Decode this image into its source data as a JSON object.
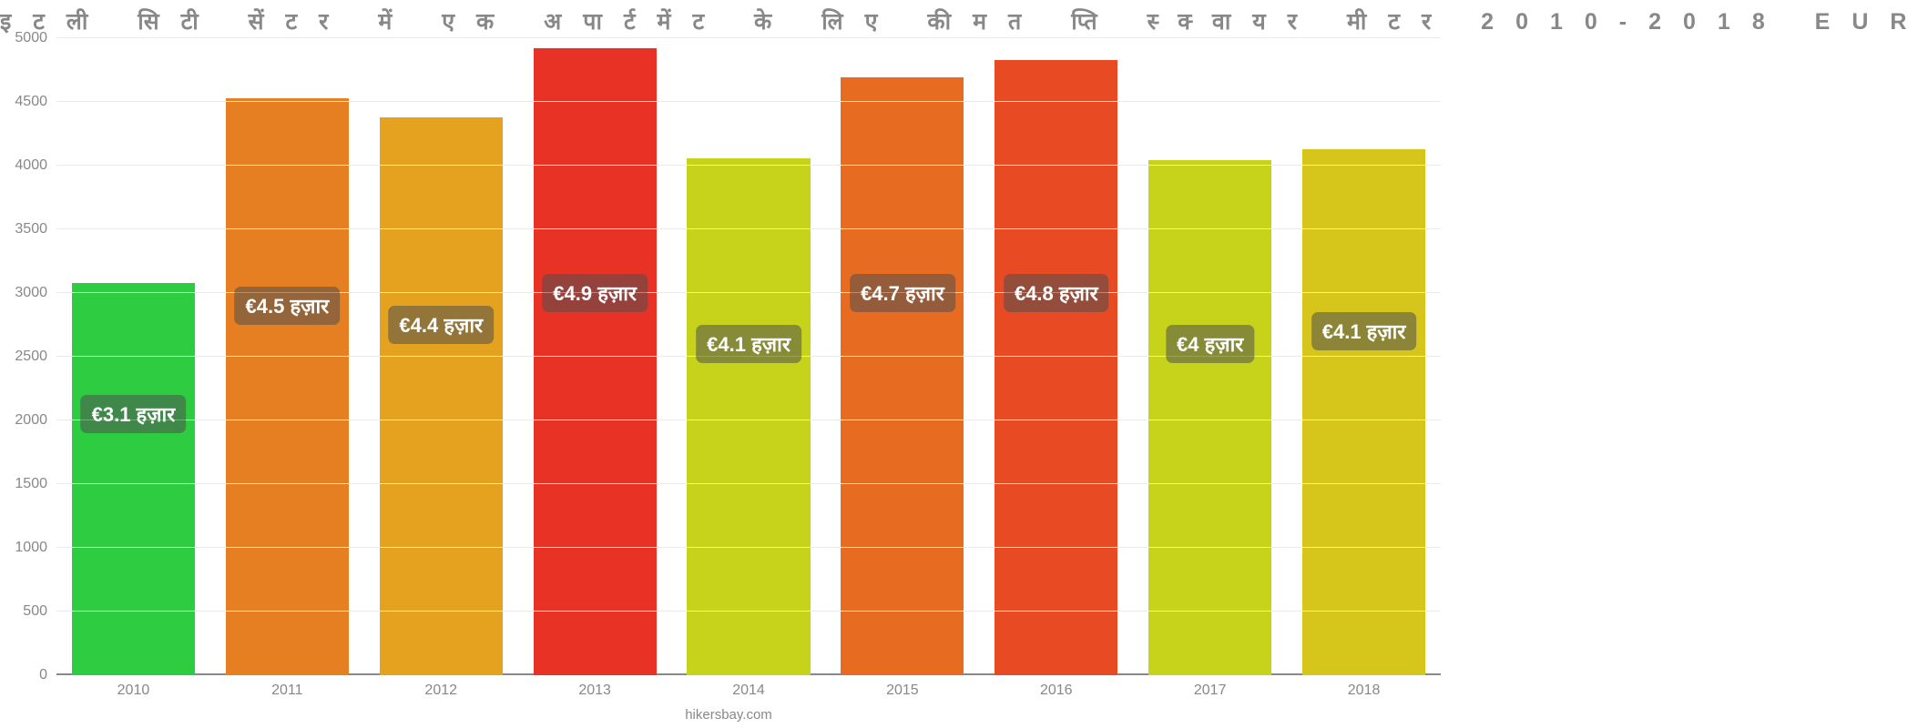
{
  "chart": {
    "type": "bar",
    "title": "इटली सिटी सेंटर में एक अपार्टमेंट के लिए कीमत प्ति स्क्वायर मीटर 2010-2018 EUR",
    "title_fontsize": 25,
    "title_color": "#888888",
    "footer": "hikersbay.com",
    "footer_color": "#888888",
    "background_color": "#ffffff",
    "grid_color": "#eaeaea",
    "axis_color": "#888888",
    "tick_label_color": "#888888",
    "tick_label_fontsize": 16,
    "ylim_min": 0,
    "ylim_max": 5000,
    "ytick_step": 500,
    "yticks": [
      0,
      500,
      1000,
      1500,
      2000,
      2500,
      3000,
      3500,
      4000,
      4500,
      5000
    ],
    "bar_width_pct": 80,
    "value_label_fontsize": 22,
    "value_label_text_color": "#ffffff",
    "value_label_bg_opacity": 0.55,
    "value_label_y_value": 2300,
    "label_offsets": [
      -550,
      300,
      150,
      400,
      0,
      400,
      400,
      0,
      100
    ],
    "categories": [
      "2010",
      "2011",
      "2012",
      "2013",
      "2014",
      "2015",
      "2016",
      "2017",
      "2018"
    ],
    "values": [
      3080,
      4530,
      4380,
      4920,
      4060,
      4690,
      4830,
      4040,
      4130
    ],
    "display_values": [
      "€3.1 हज़ार",
      "€4.5 हज़ार",
      "€4.4 हज़ार",
      "€4.9 हज़ार",
      "€4.1 हज़ार",
      "€4.7 हज़ार",
      "€4.8 हज़ार",
      "€4 हज़ार",
      "€4.1 हज़ार"
    ],
    "bar_colors": [
      "#2ecc40",
      "#e67e22",
      "#e5a21e",
      "#e93226",
      "#c7d31b",
      "#e76b20",
      "#e84a23",
      "#c7d31b",
      "#d6c51a"
    ]
  }
}
